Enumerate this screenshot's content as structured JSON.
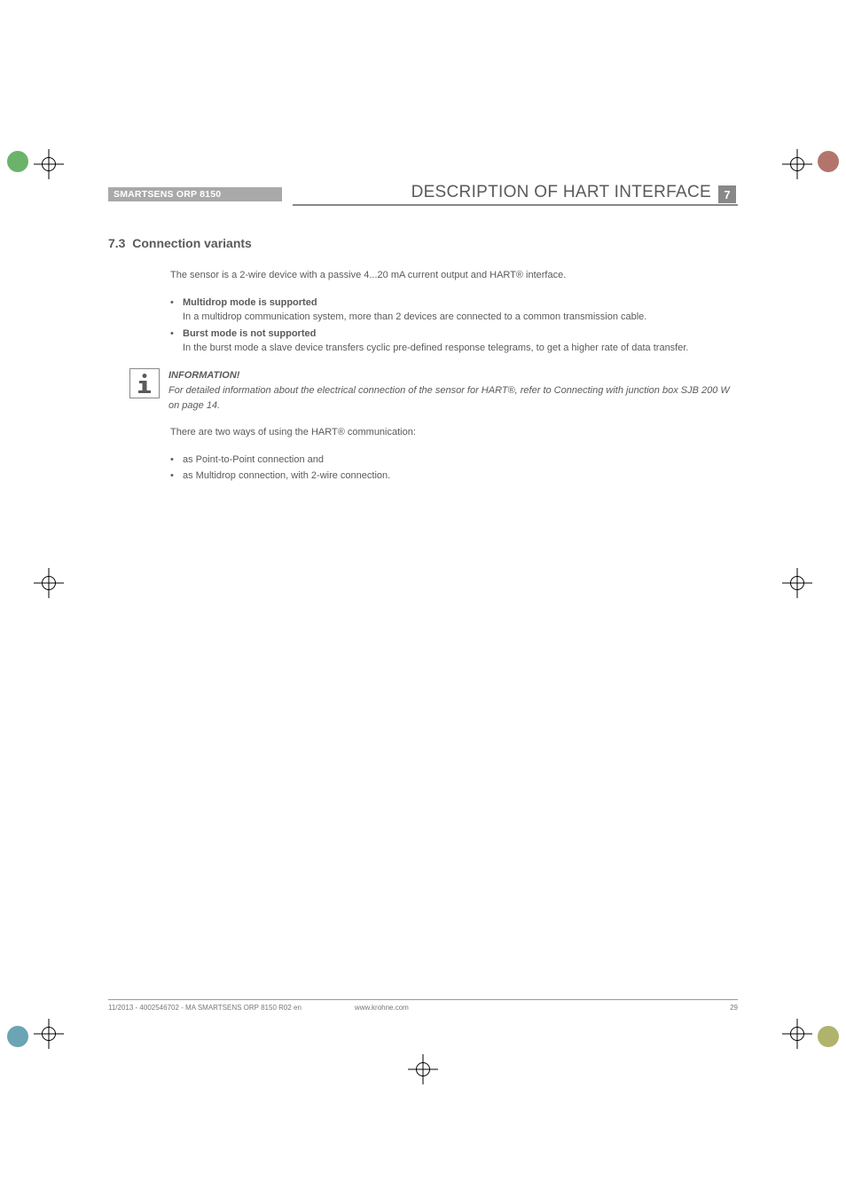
{
  "header": {
    "product": "SMARTSENS ORP 8150",
    "title": "DESCRIPTION OF HART INTERFACE",
    "chapter_num": "7"
  },
  "section": {
    "num": "7.3",
    "title": "Connection variants"
  },
  "intro": "The sensor is a 2-wire device with a passive 4...20 mA current output and HART® interface.",
  "modes": [
    {
      "head": "Multidrop mode is supported",
      "body": "In a multidrop communication system, more than 2 devices are connected to a common transmission cable."
    },
    {
      "head": "Burst mode is not supported",
      "body": "In the burst mode a slave device transfers cyclic pre-defined response telegrams, to get a higher rate of data transfer."
    }
  ],
  "info": {
    "label": "INFORMATION!",
    "text": "For detailed information about the electrical connection of the sensor for HART®, refer to Connecting with junction box SJB 200 W on page 14."
  },
  "ways_intro": "There are two ways of using the HART® communication:",
  "ways": [
    "as Point-to-Point connection and",
    "as Multidrop connection, with 2-wire connection."
  ],
  "footer": {
    "left": "11/2013 - 4002546702 - MA SMARTSENS ORP 8150 R02 en",
    "mid": "www.krohne.com",
    "page": "29"
  },
  "colors": {
    "text": "#5a5a5a",
    "bar": "#a9a9a9",
    "accent": "#888888"
  }
}
